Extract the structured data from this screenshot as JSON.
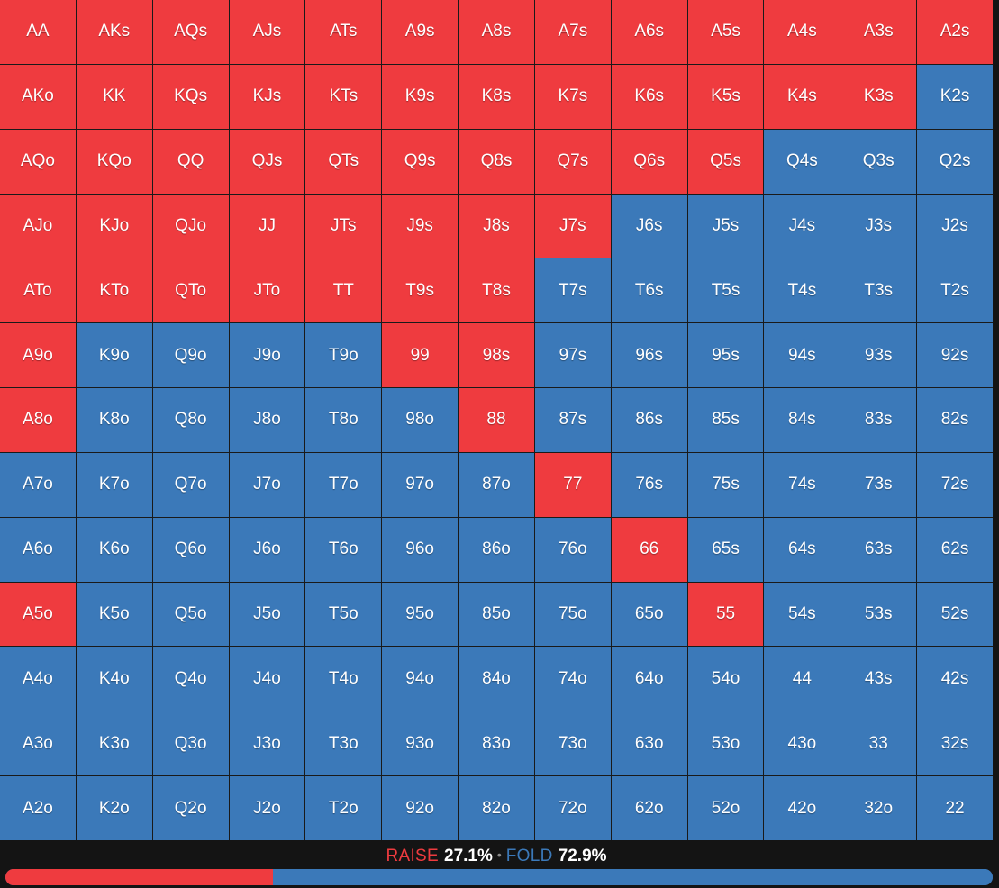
{
  "colors": {
    "raise": "#ef3b3f",
    "fold": "#3b79b9"
  },
  "grid": {
    "rows": [
      [
        [
          "AA",
          "raise"
        ],
        [
          "AKs",
          "raise"
        ],
        [
          "AQs",
          "raise"
        ],
        [
          "AJs",
          "raise"
        ],
        [
          "ATs",
          "raise"
        ],
        [
          "A9s",
          "raise"
        ],
        [
          "A8s",
          "raise"
        ],
        [
          "A7s",
          "raise"
        ],
        [
          "A6s",
          "raise"
        ],
        [
          "A5s",
          "raise"
        ],
        [
          "A4s",
          "raise"
        ],
        [
          "A3s",
          "raise"
        ],
        [
          "A2s",
          "raise"
        ]
      ],
      [
        [
          "AKo",
          "raise"
        ],
        [
          "KK",
          "raise"
        ],
        [
          "KQs",
          "raise"
        ],
        [
          "KJs",
          "raise"
        ],
        [
          "KTs",
          "raise"
        ],
        [
          "K9s",
          "raise"
        ],
        [
          "K8s",
          "raise"
        ],
        [
          "K7s",
          "raise"
        ],
        [
          "K6s",
          "raise"
        ],
        [
          "K5s",
          "raise"
        ],
        [
          "K4s",
          "raise"
        ],
        [
          "K3s",
          "raise"
        ],
        [
          "K2s",
          "fold"
        ]
      ],
      [
        [
          "AQo",
          "raise"
        ],
        [
          "KQo",
          "raise"
        ],
        [
          "QQ",
          "raise"
        ],
        [
          "QJs",
          "raise"
        ],
        [
          "QTs",
          "raise"
        ],
        [
          "Q9s",
          "raise"
        ],
        [
          "Q8s",
          "raise"
        ],
        [
          "Q7s",
          "raise"
        ],
        [
          "Q6s",
          "raise"
        ],
        [
          "Q5s",
          "raise"
        ],
        [
          "Q4s",
          "fold"
        ],
        [
          "Q3s",
          "fold"
        ],
        [
          "Q2s",
          "fold"
        ]
      ],
      [
        [
          "AJo",
          "raise"
        ],
        [
          "KJo",
          "raise"
        ],
        [
          "QJo",
          "raise"
        ],
        [
          "JJ",
          "raise"
        ],
        [
          "JTs",
          "raise"
        ],
        [
          "J9s",
          "raise"
        ],
        [
          "J8s",
          "raise"
        ],
        [
          "J7s",
          "raise"
        ],
        [
          "J6s",
          "fold"
        ],
        [
          "J5s",
          "fold"
        ],
        [
          "J4s",
          "fold"
        ],
        [
          "J3s",
          "fold"
        ],
        [
          "J2s",
          "fold"
        ]
      ],
      [
        [
          "ATo",
          "raise"
        ],
        [
          "KTo",
          "raise"
        ],
        [
          "QTo",
          "raise"
        ],
        [
          "JTo",
          "raise"
        ],
        [
          "TT",
          "raise"
        ],
        [
          "T9s",
          "raise"
        ],
        [
          "T8s",
          "raise"
        ],
        [
          "T7s",
          "fold"
        ],
        [
          "T6s",
          "fold"
        ],
        [
          "T5s",
          "fold"
        ],
        [
          "T4s",
          "fold"
        ],
        [
          "T3s",
          "fold"
        ],
        [
          "T2s",
          "fold"
        ]
      ],
      [
        [
          "A9o",
          "raise"
        ],
        [
          "K9o",
          "fold"
        ],
        [
          "Q9o",
          "fold"
        ],
        [
          "J9o",
          "fold"
        ],
        [
          "T9o",
          "fold"
        ],
        [
          "99",
          "raise"
        ],
        [
          "98s",
          "raise"
        ],
        [
          "97s",
          "fold"
        ],
        [
          "96s",
          "fold"
        ],
        [
          "95s",
          "fold"
        ],
        [
          "94s",
          "fold"
        ],
        [
          "93s",
          "fold"
        ],
        [
          "92s",
          "fold"
        ]
      ],
      [
        [
          "A8o",
          "raise"
        ],
        [
          "K8o",
          "fold"
        ],
        [
          "Q8o",
          "fold"
        ],
        [
          "J8o",
          "fold"
        ],
        [
          "T8o",
          "fold"
        ],
        [
          "98o",
          "fold"
        ],
        [
          "88",
          "raise"
        ],
        [
          "87s",
          "fold"
        ],
        [
          "86s",
          "fold"
        ],
        [
          "85s",
          "fold"
        ],
        [
          "84s",
          "fold"
        ],
        [
          "83s",
          "fold"
        ],
        [
          "82s",
          "fold"
        ]
      ],
      [
        [
          "A7o",
          "fold"
        ],
        [
          "K7o",
          "fold"
        ],
        [
          "Q7o",
          "fold"
        ],
        [
          "J7o",
          "fold"
        ],
        [
          "T7o",
          "fold"
        ],
        [
          "97o",
          "fold"
        ],
        [
          "87o",
          "fold"
        ],
        [
          "77",
          "raise"
        ],
        [
          "76s",
          "fold"
        ],
        [
          "75s",
          "fold"
        ],
        [
          "74s",
          "fold"
        ],
        [
          "73s",
          "fold"
        ],
        [
          "72s",
          "fold"
        ]
      ],
      [
        [
          "A6o",
          "fold"
        ],
        [
          "K6o",
          "fold"
        ],
        [
          "Q6o",
          "fold"
        ],
        [
          "J6o",
          "fold"
        ],
        [
          "T6o",
          "fold"
        ],
        [
          "96o",
          "fold"
        ],
        [
          "86o",
          "fold"
        ],
        [
          "76o",
          "fold"
        ],
        [
          "66",
          "raise"
        ],
        [
          "65s",
          "fold"
        ],
        [
          "64s",
          "fold"
        ],
        [
          "63s",
          "fold"
        ],
        [
          "62s",
          "fold"
        ]
      ],
      [
        [
          "A5o",
          "raise"
        ],
        [
          "K5o",
          "fold"
        ],
        [
          "Q5o",
          "fold"
        ],
        [
          "J5o",
          "fold"
        ],
        [
          "T5o",
          "fold"
        ],
        [
          "95o",
          "fold"
        ],
        [
          "85o",
          "fold"
        ],
        [
          "75o",
          "fold"
        ],
        [
          "65o",
          "fold"
        ],
        [
          "55",
          "raise"
        ],
        [
          "54s",
          "fold"
        ],
        [
          "53s",
          "fold"
        ],
        [
          "52s",
          "fold"
        ]
      ],
      [
        [
          "A4o",
          "fold"
        ],
        [
          "K4o",
          "fold"
        ],
        [
          "Q4o",
          "fold"
        ],
        [
          "J4o",
          "fold"
        ],
        [
          "T4o",
          "fold"
        ],
        [
          "94o",
          "fold"
        ],
        [
          "84o",
          "fold"
        ],
        [
          "74o",
          "fold"
        ],
        [
          "64o",
          "fold"
        ],
        [
          "54o",
          "fold"
        ],
        [
          "44",
          "fold"
        ],
        [
          "43s",
          "fold"
        ],
        [
          "42s",
          "fold"
        ]
      ],
      [
        [
          "A3o",
          "fold"
        ],
        [
          "K3o",
          "fold"
        ],
        [
          "Q3o",
          "fold"
        ],
        [
          "J3o",
          "fold"
        ],
        [
          "T3o",
          "fold"
        ],
        [
          "93o",
          "fold"
        ],
        [
          "83o",
          "fold"
        ],
        [
          "73o",
          "fold"
        ],
        [
          "63o",
          "fold"
        ],
        [
          "53o",
          "fold"
        ],
        [
          "43o",
          "fold"
        ],
        [
          "33",
          "fold"
        ],
        [
          "32s",
          "fold"
        ]
      ],
      [
        [
          "A2o",
          "fold"
        ],
        [
          "K2o",
          "fold"
        ],
        [
          "Q2o",
          "fold"
        ],
        [
          "J2o",
          "fold"
        ],
        [
          "T2o",
          "fold"
        ],
        [
          "92o",
          "fold"
        ],
        [
          "82o",
          "fold"
        ],
        [
          "72o",
          "fold"
        ],
        [
          "62o",
          "fold"
        ],
        [
          "52o",
          "fold"
        ],
        [
          "42o",
          "fold"
        ],
        [
          "32o",
          "fold"
        ],
        [
          "22",
          "fold"
        ]
      ]
    ]
  },
  "summary": {
    "raise_label": "RAISE",
    "raise_value": "27.1%",
    "separator": "•",
    "fold_label": "FOLD",
    "fold_value": "72.9%"
  },
  "frequency_bar": {
    "raise_fraction": 0.271,
    "fold_fraction": 0.729
  }
}
